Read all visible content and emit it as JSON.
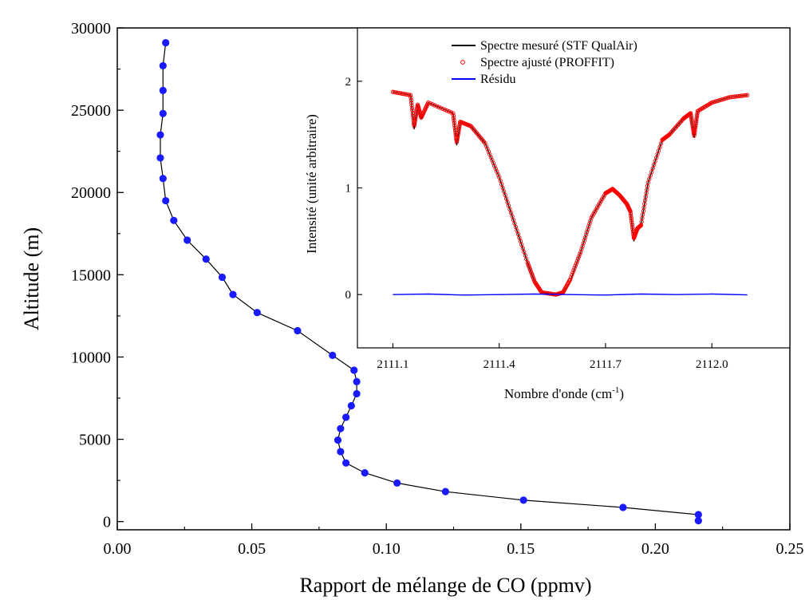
{
  "chart_data": [
    {
      "type": "line",
      "xlabel": "Rapport de mélange de CO (ppmv)",
      "ylabel": "Altitude (m)",
      "xlim": [
        0.0,
        0.25
      ],
      "ylim": [
        -500,
        30000
      ],
      "xticks": [
        0.0,
        0.05,
        0.1,
        0.15,
        0.2,
        0.25
      ],
      "xtick_labels": [
        "0.00",
        "0.05",
        "0.10",
        "0.15",
        "0.20",
        "0.25"
      ],
      "yticks": [
        0,
        5000,
        10000,
        15000,
        20000,
        25000,
        30000
      ],
      "ytick_labels": [
        "0",
        "5000",
        "10000",
        "15000",
        "20000",
        "25000",
        "30000"
      ],
      "marker_color": "#1a1aff",
      "line_color": "#000000",
      "series": [
        {
          "x": [
            0.216,
            0.216,
            0.188,
            0.151,
            0.122,
            0.104,
            0.092,
            0.085,
            0.083,
            0.082,
            0.083,
            0.085,
            0.087,
            0.089,
            0.089,
            0.088,
            0.08,
            0.067,
            0.052,
            0.043,
            0.039,
            0.033,
            0.026,
            0.021,
            0.018,
            0.017,
            0.016,
            0.016,
            0.017,
            0.017,
            0.017,
            0.018
          ],
          "y": [
            50,
            420,
            860,
            1300,
            1820,
            2340,
            2960,
            3560,
            4250,
            4950,
            5650,
            6340,
            7040,
            7770,
            8500,
            9200,
            10100,
            11600,
            12700,
            13800,
            14850,
            15950,
            17100,
            18300,
            19500,
            20850,
            22100,
            23500,
            24800,
            26200,
            27700,
            29100
          ]
        }
      ]
    },
    {
      "type": "line",
      "xlabel": "Nombre d'onde (cm",
      "xlabel_sup": "-1",
      "xlabel_end": ")",
      "ylabel": "Intensité (unité arbitraire)",
      "xlim": [
        2111.0,
        2112.22
      ],
      "ylim": [
        -0.5,
        2.5
      ],
      "xticks": [
        2111.1,
        2111.4,
        2111.7,
        2112.0
      ],
      "xtick_labels": [
        "2111.1",
        "2111.4",
        "2111.7",
        "2112.0"
      ],
      "yticks": [
        0,
        1,
        2
      ],
      "ytick_labels": [
        "0",
        "1",
        "2"
      ],
      "legend_position": "top-center",
      "series": [
        {
          "name": "Spectre mesuré (STF QualAir)",
          "color": "#000000",
          "style": "line",
          "x": [
            2111.1,
            2111.15,
            2111.16,
            2111.17,
            2111.18,
            2111.2,
            2111.27,
            2111.28,
            2111.29,
            2111.32,
            2111.36,
            2111.4,
            2111.44,
            2111.48,
            2111.5,
            2111.52,
            2111.56,
            2111.58,
            2111.6,
            2111.63,
            2111.66,
            2111.7,
            2111.72,
            2111.74,
            2111.76,
            2111.77,
            2111.78,
            2111.79,
            2111.8,
            2111.82,
            2111.86,
            2111.88,
            2111.92,
            2111.94,
            2111.95,
            2111.96,
            2112.0,
            2112.05,
            2112.1
          ],
          "y": [
            1.9,
            1.87,
            1.55,
            1.78,
            1.65,
            1.8,
            1.7,
            1.4,
            1.62,
            1.58,
            1.42,
            1.1,
            0.7,
            0.3,
            0.12,
            0.02,
            0.0,
            0.02,
            0.12,
            0.4,
            0.72,
            0.95,
            0.99,
            0.93,
            0.85,
            0.78,
            0.5,
            0.62,
            0.65,
            1.05,
            1.45,
            1.5,
            1.65,
            1.7,
            1.47,
            1.72,
            1.8,
            1.85,
            1.87
          ]
        },
        {
          "name": "Spectre ajusté (PROFFIT)",
          "color": "#ff0000",
          "style": "markers",
          "x": [
            2111.1,
            2111.15,
            2111.16,
            2111.17,
            2111.18,
            2111.2,
            2111.27,
            2111.28,
            2111.29,
            2111.32,
            2111.36,
            2111.4,
            2111.44,
            2111.48,
            2111.5,
            2111.52,
            2111.56,
            2111.58,
            2111.6,
            2111.63,
            2111.66,
            2111.7,
            2111.72,
            2111.74,
            2111.76,
            2111.77,
            2111.78,
            2111.79,
            2111.8,
            2111.82,
            2111.86,
            2111.88,
            2111.92,
            2111.94,
            2111.95,
            2111.96,
            2112.0,
            2112.05,
            2112.1
          ],
          "y": [
            1.9,
            1.87,
            1.58,
            1.78,
            1.66,
            1.8,
            1.7,
            1.43,
            1.62,
            1.58,
            1.42,
            1.1,
            0.7,
            0.3,
            0.12,
            0.02,
            0.0,
            0.02,
            0.14,
            0.4,
            0.72,
            0.95,
            0.99,
            0.93,
            0.85,
            0.78,
            0.53,
            0.62,
            0.65,
            1.05,
            1.45,
            1.5,
            1.65,
            1.7,
            1.49,
            1.72,
            1.8,
            1.85,
            1.87
          ]
        },
        {
          "name": "Résidu",
          "color": "#0000ff",
          "style": "line",
          "x": [
            2111.1,
            2111.2,
            2111.3,
            2111.4,
            2111.5,
            2111.6,
            2111.7,
            2111.8,
            2111.9,
            2112.0,
            2112.1
          ],
          "y": [
            0.0,
            0.005,
            -0.005,
            0.0,
            0.005,
            0.0,
            -0.005,
            0.005,
            0.0,
            0.005,
            -0.003
          ]
        }
      ]
    }
  ]
}
